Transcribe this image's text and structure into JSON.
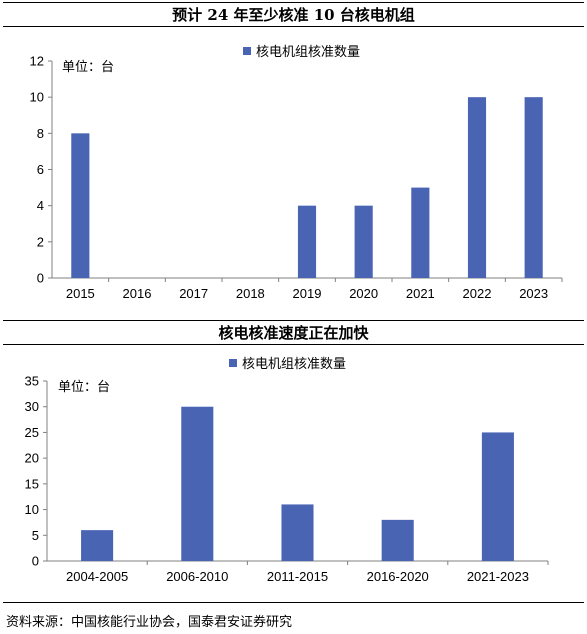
{
  "chart_data": [
    {
      "type": "bar",
      "title": "预计 24 年至少核准 10 台核电机组",
      "unit_label": "单位：台",
      "categories": [
        "2015",
        "2016",
        "2017",
        "2018",
        "2019",
        "2020",
        "2021",
        "2022",
        "2023"
      ],
      "series": [
        {
          "name": "核电机组核准数量",
          "values": [
            8,
            0,
            0,
            0,
            4,
            4,
            5,
            10,
            10
          ],
          "color": "#4a64b4"
        }
      ],
      "ylim": [
        0,
        12
      ],
      "yticks": [
        0,
        2,
        4,
        6,
        8,
        10,
        12
      ],
      "grid": false,
      "legend": "top"
    },
    {
      "type": "bar",
      "title": "核电核准速度正在加快",
      "unit_label": "单位：台",
      "categories": [
        "2004-2005",
        "2006-2010",
        "2011-2015",
        "2016-2020",
        "2021-2023"
      ],
      "series": [
        {
          "name": "核电机组核准数量",
          "values": [
            6,
            30,
            11,
            8,
            25
          ],
          "color": "#4a64b4"
        }
      ],
      "ylim": [
        0,
        35
      ],
      "yticks": [
        0,
        5,
        10,
        15,
        20,
        25,
        30,
        35
      ],
      "grid": false,
      "legend": "top"
    }
  ],
  "source": "资料来源：中国核能行业协会，国泰君安证券研究"
}
